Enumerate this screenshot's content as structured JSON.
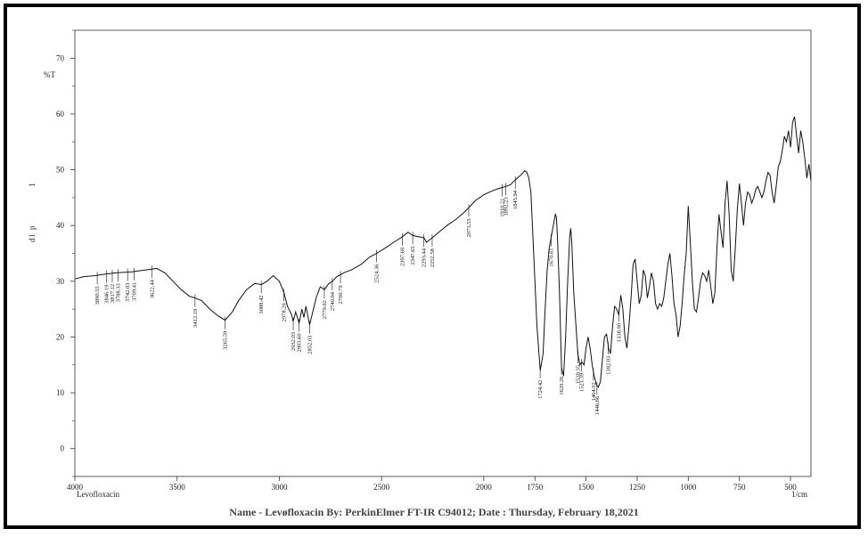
{
  "chart_data": {
    "type": "line",
    "title": "",
    "ylabel": "%T",
    "xlabel": "1/cm",
    "sample_label": "Levofloxacin",
    "left_axis_glyphs": [
      "1",
      "p",
      "l",
      "d"
    ],
    "xlim": [
      4000,
      400
    ],
    "ylim": [
      -5,
      75
    ],
    "x_ticks": [
      4000,
      3500,
      3000,
      2500,
      2000,
      1750,
      1500,
      1250,
      1000,
      750,
      500
    ],
    "x_tick_labels": [
      "4000",
      "3500",
      "3000",
      "2500",
      "2000",
      "1750",
      "1500",
      "1250",
      "1000",
      "750",
      "500"
    ],
    "y_ticks": [
      0,
      10,
      20,
      30,
      40,
      50,
      60,
      70
    ],
    "y_tick_labels": [
      "0",
      "10",
      "20",
      "30",
      "40",
      "50",
      "60",
      "70"
    ],
    "series": [
      {
        "x": [
          4000,
          3960,
          3900,
          3850,
          3800,
          3760,
          3720,
          3680,
          3640,
          3600,
          3560,
          3520,
          3480,
          3440,
          3412,
          3380,
          3340,
          3300,
          3265,
          3230,
          3200,
          3160,
          3120,
          3088,
          3060,
          3030,
          3000,
          2978,
          2960,
          2940,
          2932,
          2920,
          2903,
          2890,
          2880,
          2870,
          2852,
          2840,
          2820,
          2800,
          2779,
          2760,
          2740,
          2720,
          2700,
          2680,
          2650,
          2600,
          2560,
          2524,
          2480,
          2440,
          2397,
          2370,
          2347,
          2320,
          2293,
          2280,
          2252,
          2220,
          2180,
          2140,
          2100,
          2073,
          2040,
          2000,
          1960,
          1930,
          1910,
          1892,
          1870,
          1845,
          1820,
          1800,
          1790,
          1780,
          1770,
          1760,
          1740,
          1724,
          1710,
          1700,
          1690,
          1680,
          1670,
          1660,
          1650,
          1645,
          1640,
          1630,
          1620,
          1610,
          1600,
          1590,
          1580,
          1575,
          1570,
          1560,
          1540,
          1530,
          1520,
          1510,
          1500,
          1490,
          1480,
          1470,
          1460,
          1450,
          1440,
          1430,
          1420,
          1410,
          1400,
          1390,
          1380,
          1370,
          1360,
          1350,
          1340,
          1330,
          1320,
          1310,
          1300,
          1290,
          1280,
          1270,
          1260,
          1250,
          1240,
          1230,
          1220,
          1210,
          1200,
          1190,
          1180,
          1170,
          1160,
          1150,
          1140,
          1130,
          1120,
          1110,
          1100,
          1090,
          1080,
          1070,
          1060,
          1050,
          1040,
          1030,
          1020,
          1010,
          1000,
          990,
          980,
          970,
          960,
          950,
          940,
          930,
          920,
          910,
          900,
          890,
          880,
          870,
          860,
          850,
          840,
          830,
          820,
          810,
          800,
          790,
          780,
          770,
          760,
          750,
          740,
          730,
          720,
          710,
          700,
          690,
          680,
          670,
          660,
          650,
          640,
          630,
          620,
          610,
          600,
          590,
          580,
          570,
          560,
          550,
          540,
          530,
          520,
          510,
          500,
          490,
          480,
          470,
          460,
          450,
          440,
          430,
          420,
          410,
          400
        ],
        "y": [
          30.4,
          30.8,
          31.0,
          31.3,
          31.5,
          31.6,
          31.7,
          31.9,
          32.1,
          32.3,
          31.5,
          30.0,
          28.5,
          27.3,
          27.0,
          26.5,
          25.0,
          23.8,
          23.0,
          24.5,
          26.5,
          28.5,
          29.6,
          29.4,
          30.0,
          31.0,
          30.0,
          28.0,
          25.5,
          24.0,
          22.8,
          24.5,
          22.5,
          25.0,
          23.5,
          25.5,
          22.2,
          24.0,
          27.0,
          29.0,
          28.5,
          29.5,
          30.0,
          30.8,
          31.2,
          31.6,
          32.0,
          33.0,
          34.3,
          35.0,
          36.0,
          37.0,
          38.0,
          38.8,
          38.2,
          38.0,
          37.8,
          37.0,
          37.8,
          38.8,
          40.0,
          41.0,
          42.2,
          43.2,
          44.5,
          45.5,
          46.2,
          46.6,
          46.8,
          47.0,
          47.3,
          48.2,
          49.0,
          49.8,
          49.6,
          48.5,
          46.0,
          38.0,
          22.0,
          14.0,
          17.0,
          25.0,
          32.0,
          36.0,
          38.0,
          40.0,
          42.0,
          41.5,
          38.0,
          28.0,
          14.5,
          13.0,
          20.0,
          30.0,
          38.0,
          39.5,
          37.0,
          28.0,
          17.0,
          15.0,
          15.5,
          15.0,
          18.0,
          20.0,
          18.0,
          15.0,
          13.0,
          11.5,
          11.0,
          12.0,
          16.0,
          20.0,
          20.5,
          18.0,
          17.0,
          22.0,
          25.5,
          25.0,
          24.0,
          27.5,
          25.0,
          20.0,
          18.0,
          22.0,
          27.0,
          33.0,
          34.0,
          30.0,
          26.0,
          27.5,
          32.0,
          31.0,
          27.0,
          29.0,
          31.5,
          30.0,
          26.0,
          25.0,
          26.0,
          25.5,
          27.0,
          30.0,
          33.0,
          35.0,
          31.0,
          26.0,
          24.0,
          20.0,
          22.0,
          26.0,
          31.0,
          35.0,
          43.5,
          37.0,
          30.0,
          25.0,
          24.5,
          27.0,
          30.0,
          31.5,
          31.0,
          30.0,
          32.0,
          29.0,
          26.0,
          28.0,
          36.0,
          42.0,
          39.0,
          36.0,
          44.0,
          48.0,
          42.0,
          32.0,
          30.0,
          36.0,
          43.0,
          47.5,
          44.0,
          40.0,
          44.0,
          46.0,
          45.5,
          44.0,
          45.0,
          46.5,
          47.0,
          46.0,
          45.0,
          46.0,
          48.0,
          49.5,
          49.0,
          46.0,
          44.0,
          47.0,
          50.5,
          51.5,
          53.5,
          56.0,
          55.0,
          57.0,
          54.0,
          58.5,
          59.5,
          56.0,
          53.0,
          57.0,
          55.0,
          52.0,
          48.5,
          51.0,
          48.0
        ]
      }
    ],
    "peak_labels": [
      {
        "x": 3890.55,
        "text": "3890.55"
      },
      {
        "x": 3846.19,
        "text": "3846.19"
      },
      {
        "x": 3817.12,
        "text": "3817.12"
      },
      {
        "x": 3788.33,
        "text": "3788.33"
      },
      {
        "x": 3742.03,
        "text": "3742.03"
      },
      {
        "x": 3709.41,
        "text": "3709.41"
      },
      {
        "x": 3622.44,
        "text": "3622.44"
      },
      {
        "x": 3412.19,
        "text": "3412.19"
      },
      {
        "x": 3265.59,
        "text": "3265.59"
      },
      {
        "x": 3088.42,
        "text": "3088.42"
      },
      {
        "x": 2978.26,
        "text": "2978.26"
      },
      {
        "x": 2932.03,
        "text": "2932.03"
      },
      {
        "x": 2903.6,
        "text": "2903.60"
      },
      {
        "x": 2852.03,
        "text": "2852.03"
      },
      {
        "x": 2779.92,
        "text": "2779.92"
      },
      {
        "x": 2740.94,
        "text": "2740.94"
      },
      {
        "x": 2700.79,
        "text": "2700.79"
      },
      {
        "x": 2524.36,
        "text": "2524.36"
      },
      {
        "x": 2397.69,
        "text": "2397.69"
      },
      {
        "x": 2347.65,
        "text": "2347.65"
      },
      {
        "x": 2293.44,
        "text": "2293.44"
      },
      {
        "x": 2252.58,
        "text": "2252.58"
      },
      {
        "x": 2073.55,
        "text": "2073.55"
      },
      {
        "x": 1910.21,
        "text": "1910.21"
      },
      {
        "x": 1892.23,
        "text": "1892.23"
      },
      {
        "x": 1845.94,
        "text": "1845.94"
      },
      {
        "x": 1724.42,
        "text": "1724.42"
      },
      {
        "x": 1670.61,
        "text": "1670.61"
      },
      {
        "x": 1620.26,
        "text": "1620.26"
      },
      {
        "x": 1539.35,
        "text": "1539.35"
      },
      {
        "x": 1521.39,
        "text": "1521.39"
      },
      {
        "x": 1464.02,
        "text": "1464.02"
      },
      {
        "x": 1446.66,
        "text": "1446.66"
      },
      {
        "x": 1392.03,
        "text": "1392.03"
      },
      {
        "x": 1338.9,
        "text": "1338.90"
      }
    ],
    "grid": false,
    "legend": "none"
  },
  "caption": "Name - Levøfloxacin By: PerkinElmer FT-IR C94012; Date : Thursday, February 18,2021"
}
